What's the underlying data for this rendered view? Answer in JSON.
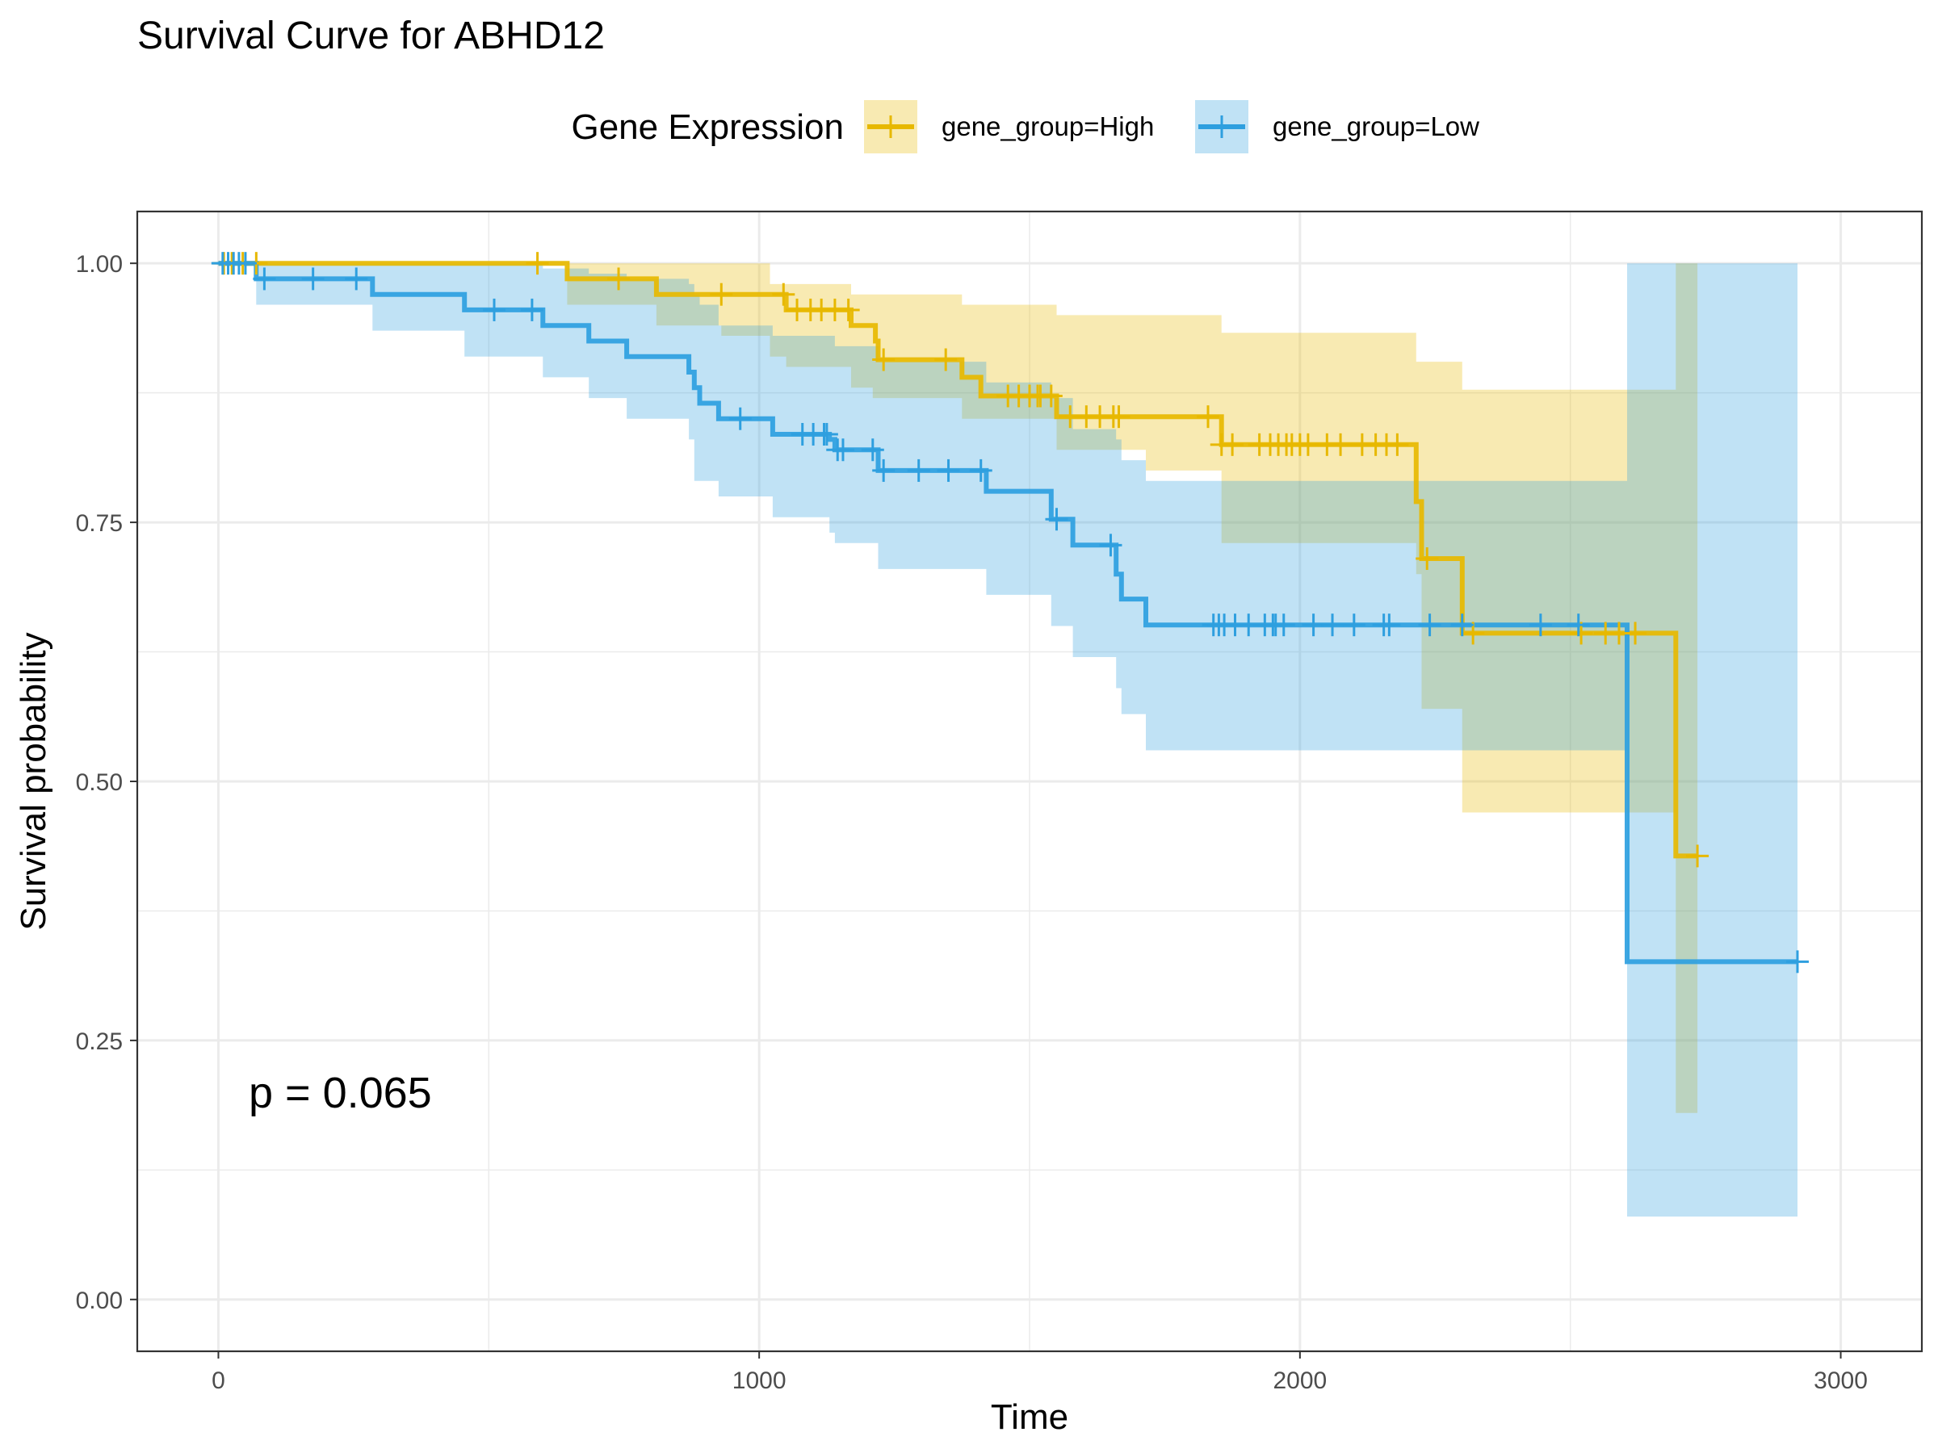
{
  "chart_data": {
    "type": "line",
    "subtype": "kaplan-meier",
    "title": "Survival Curve for ABHD12",
    "xlabel": "Time",
    "ylabel": "Survival probability",
    "xlim": [
      -150,
      3150
    ],
    "ylim": [
      -0.05,
      1.05
    ],
    "x_ticks": [
      0,
      1000,
      2000,
      3000
    ],
    "x_tick_labels": [
      "0",
      "1000",
      "2000",
      "3000"
    ],
    "y_ticks": [
      0,
      0.25,
      0.5,
      0.75,
      1.0
    ],
    "y_tick_labels": [
      "0.00",
      "0.25",
      "0.50",
      "0.75",
      "1.00"
    ],
    "grid": true,
    "legend": {
      "title": "Gene Expression",
      "position": "top"
    },
    "annotation": "p = 0.065",
    "series": [
      {
        "name": "gene_group=High",
        "color": "#E7B800",
        "steps": [
          [
            0,
            1.0
          ],
          [
            645,
            0.985
          ],
          [
            810,
            0.97
          ],
          [
            1050,
            0.955
          ],
          [
            1170,
            0.94
          ],
          [
            1215,
            0.925
          ],
          [
            1220,
            0.907
          ],
          [
            1375,
            0.89
          ],
          [
            1410,
            0.872
          ],
          [
            1550,
            0.852
          ],
          [
            1855,
            0.825
          ],
          [
            2215,
            0.77
          ],
          [
            2225,
            0.715
          ],
          [
            2300,
            0.643
          ],
          [
            2695,
            0.428
          ],
          [
            2735,
            0.428
          ]
        ],
        "ci_steps": [
          [
            0,
            1.0,
            1.0
          ],
          [
            645,
            1.0,
            0.96
          ],
          [
            810,
            1.0,
            0.94
          ],
          [
            930,
            1.0,
            0.93
          ],
          [
            1020,
            0.98,
            0.91
          ],
          [
            1050,
            0.98,
            0.9
          ],
          [
            1170,
            0.97,
            0.88
          ],
          [
            1210,
            0.97,
            0.87
          ],
          [
            1375,
            0.96,
            0.85
          ],
          [
            1550,
            0.95,
            0.82
          ],
          [
            1715,
            0.95,
            0.8
          ],
          [
            1855,
            0.933,
            0.73
          ],
          [
            2215,
            0.905,
            0.7
          ],
          [
            2225,
            0.905,
            0.57
          ],
          [
            2300,
            0.878,
            0.47
          ],
          [
            2605,
            0.878,
            0.47
          ],
          [
            2695,
            1.0,
            0.18
          ],
          [
            2735,
            1.0,
            0.18
          ]
        ],
        "censor_times": [
          10,
          25,
          45,
          70,
          590,
          740,
          930,
          1045,
          1070,
          1095,
          1115,
          1140,
          1165,
          1230,
          1345,
          1460,
          1480,
          1500,
          1515,
          1520,
          1540,
          1575,
          1605,
          1630,
          1655,
          1665,
          1830,
          1855,
          1875,
          1925,
          1945,
          1960,
          1975,
          1985,
          2000,
          2015,
          2050,
          2075,
          2115,
          2140,
          2160,
          2180,
          2235,
          2320,
          2520,
          2565,
          2590,
          2620,
          2735
        ]
      },
      {
        "name": "gene_group=Low",
        "color": "#2E9FDF",
        "steps": [
          [
            0,
            1.0
          ],
          [
            70,
            0.985
          ],
          [
            285,
            0.97
          ],
          [
            455,
            0.955
          ],
          [
            600,
            0.94
          ],
          [
            685,
            0.925
          ],
          [
            755,
            0.91
          ],
          [
            870,
            0.895
          ],
          [
            880,
            0.88
          ],
          [
            890,
            0.865
          ],
          [
            925,
            0.85
          ],
          [
            1025,
            0.835
          ],
          [
            1130,
            0.83
          ],
          [
            1140,
            0.82
          ],
          [
            1220,
            0.8
          ],
          [
            1420,
            0.78
          ],
          [
            1540,
            0.753
          ],
          [
            1580,
            0.728
          ],
          [
            1660,
            0.7
          ],
          [
            1670,
            0.676
          ],
          [
            1715,
            0.651
          ],
          [
            2605,
            0.326
          ],
          [
            2920,
            0.326
          ]
        ],
        "ci_steps": [
          [
            0,
            1.0,
            1.0
          ],
          [
            70,
            1.0,
            0.96
          ],
          [
            285,
            1.0,
            0.935
          ],
          [
            455,
            1.0,
            0.91
          ],
          [
            600,
            0.995,
            0.89
          ],
          [
            685,
            0.99,
            0.87
          ],
          [
            755,
            0.985,
            0.85
          ],
          [
            870,
            0.98,
            0.83
          ],
          [
            880,
            0.97,
            0.79
          ],
          [
            890,
            0.96,
            0.79
          ],
          [
            925,
            0.94,
            0.775
          ],
          [
            1025,
            0.93,
            0.755
          ],
          [
            1130,
            0.93,
            0.74
          ],
          [
            1140,
            0.92,
            0.73
          ],
          [
            1220,
            0.905,
            0.705
          ],
          [
            1420,
            0.885,
            0.68
          ],
          [
            1540,
            0.87,
            0.65
          ],
          [
            1580,
            0.84,
            0.62
          ],
          [
            1660,
            0.83,
            0.59
          ],
          [
            1670,
            0.81,
            0.565
          ],
          [
            1715,
            0.79,
            0.53
          ],
          [
            2605,
            1.0,
            0.08
          ],
          [
            2920,
            1.0,
            0.08
          ]
        ],
        "censor_times": [
          8,
          18,
          28,
          38,
          50,
          85,
          175,
          255,
          510,
          580,
          965,
          1080,
          1100,
          1120,
          1125,
          1145,
          1155,
          1210,
          1230,
          1295,
          1350,
          1410,
          1550,
          1650,
          1840,
          1850,
          1860,
          1880,
          1905,
          1935,
          1950,
          1955,
          1970,
          2025,
          2060,
          2100,
          2155,
          2165,
          2240,
          2300,
          2445,
          2515,
          2920
        ]
      }
    ]
  }
}
